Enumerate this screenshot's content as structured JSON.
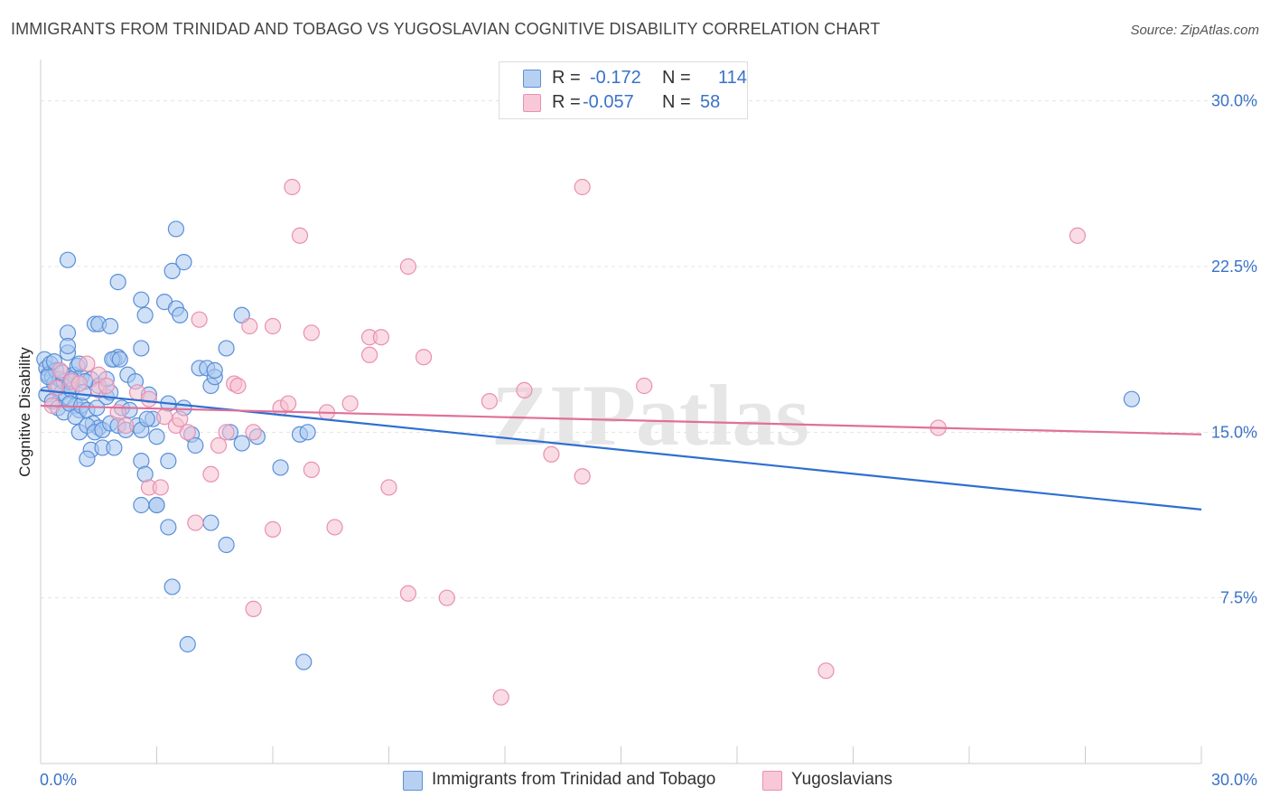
{
  "title": "IMMIGRANTS FROM TRINIDAD AND TOBAGO VS YUGOSLAVIAN COGNITIVE DISABILITY CORRELATION CHART",
  "source": "Source: ZipAtlas.com",
  "watermark": "ZIPatlas",
  "colors": {
    "blue_fill": "#a9c8f0",
    "blue_stroke": "#5a8fd8",
    "blue_line": "#2f6fd0",
    "pink_fill": "#f6bfd0",
    "pink_stroke": "#e890b0",
    "pink_line": "#e0709a",
    "axis_text": "#3a72c8",
    "grid": "#e4e4e4"
  },
  "legend_top": {
    "rows": [
      {
        "r_label": "R =",
        "r_value": "-0.172",
        "n_label": "N =",
        "n_value": "114"
      },
      {
        "r_label": "R =",
        "r_value": "-0.057",
        "n_label": "N =",
        "n_value": "58"
      }
    ]
  },
  "chart_data": {
    "type": "scatter",
    "title": "IMMIGRANTS FROM TRINIDAD AND TOBAGO VS YUGOSLAVIAN COGNITIVE DISABILITY CORRELATION CHART",
    "xlabel": "",
    "ylabel": "Cognitive Disability",
    "xlim": [
      0,
      30
    ],
    "ylim": [
      0,
      31.5
    ],
    "x_tick_labels": [
      "0.0%",
      "30.0%"
    ],
    "y_ticks": [
      7.5,
      15.0,
      22.5,
      30.0
    ],
    "y_tick_labels": [
      "7.5%",
      "15.0%",
      "22.5%",
      "30.0%"
    ],
    "grid": true,
    "legend_position": "bottom",
    "series": [
      {
        "name": "Immigrants from Trinidad and Tobago",
        "r": -0.172,
        "n": 114,
        "trend": {
          "x": [
            0,
            30
          ],
          "y": [
            16.9,
            11.5
          ]
        },
        "points": [
          [
            0.1,
            18.3
          ],
          [
            0.15,
            17.9
          ],
          [
            0.2,
            17.6
          ],
          [
            0.25,
            18.1
          ],
          [
            0.3,
            17.5
          ],
          [
            0.35,
            17.2
          ],
          [
            0.4,
            17.8
          ],
          [
            0.45,
            17.0
          ],
          [
            0.5,
            17.4
          ],
          [
            0.55,
            16.8
          ],
          [
            0.6,
            17.3
          ],
          [
            0.65,
            16.6
          ],
          [
            0.7,
            18.6
          ],
          [
            0.75,
            17.1
          ],
          [
            0.8,
            16.9
          ],
          [
            0.85,
            17.6
          ],
          [
            0.9,
            16.2
          ],
          [
            0.95,
            18.0
          ],
          [
            1.0,
            16.0
          ],
          [
            1.05,
            17.5
          ],
          [
            0.15,
            16.7
          ],
          [
            0.3,
            16.4
          ],
          [
            0.45,
            16.1
          ],
          [
            0.6,
            15.9
          ],
          [
            0.75,
            16.3
          ],
          [
            0.9,
            15.7
          ],
          [
            1.05,
            16.2
          ],
          [
            1.2,
            16.0
          ],
          [
            1.35,
            15.4
          ],
          [
            1.5,
            15.2
          ],
          [
            1.0,
            15.0
          ],
          [
            1.2,
            15.3
          ],
          [
            1.4,
            15.0
          ],
          [
            1.6,
            15.1
          ],
          [
            1.8,
            15.4
          ],
          [
            2.0,
            15.3
          ],
          [
            2.2,
            15.1
          ],
          [
            1.3,
            14.2
          ],
          [
            1.6,
            14.3
          ],
          [
            1.9,
            14.3
          ],
          [
            0.7,
            22.8
          ],
          [
            0.7,
            19.5
          ],
          [
            0.7,
            18.9
          ],
          [
            1.0,
            18.1
          ],
          [
            1.4,
            19.9
          ],
          [
            1.5,
            19.9
          ],
          [
            1.8,
            19.8
          ],
          [
            1.9,
            18.3
          ],
          [
            2.0,
            18.4
          ],
          [
            1.3,
            17.4
          ],
          [
            1.5,
            17.1
          ],
          [
            1.7,
            16.6
          ],
          [
            1.8,
            16.8
          ],
          [
            2.1,
            16.1
          ],
          [
            2.3,
            16.0
          ],
          [
            2.5,
            15.3
          ],
          [
            2.6,
            15.1
          ],
          [
            2.8,
            16.7
          ],
          [
            2.9,
            15.6
          ],
          [
            3.0,
            14.8
          ],
          [
            2.0,
            21.8
          ],
          [
            2.6,
            21.0
          ],
          [
            2.7,
            20.3
          ],
          [
            2.6,
            18.8
          ],
          [
            3.2,
            20.9
          ],
          [
            3.5,
            20.6
          ],
          [
            3.6,
            20.3
          ],
          [
            3.4,
            22.3
          ],
          [
            3.7,
            22.7
          ],
          [
            3.5,
            24.2
          ],
          [
            3.3,
            16.3
          ],
          [
            3.7,
            16.1
          ],
          [
            3.9,
            14.9
          ],
          [
            4.0,
            14.4
          ],
          [
            4.1,
            17.9
          ],
          [
            4.3,
            17.9
          ],
          [
            4.4,
            17.1
          ],
          [
            4.5,
            17.5
          ],
          [
            4.5,
            17.8
          ],
          [
            4.8,
            18.8
          ],
          [
            5.2,
            20.3
          ],
          [
            5.6,
            14.8
          ],
          [
            5.2,
            14.5
          ],
          [
            4.9,
            15.0
          ],
          [
            2.6,
            13.7
          ],
          [
            2.7,
            13.1
          ],
          [
            3.3,
            13.7
          ],
          [
            3.0,
            11.7
          ],
          [
            3.0,
            11.7
          ],
          [
            2.6,
            11.7
          ],
          [
            3.3,
            10.7
          ],
          [
            4.4,
            10.9
          ],
          [
            4.8,
            9.9
          ],
          [
            3.4,
            8.0
          ],
          [
            3.8,
            5.4
          ],
          [
            6.2,
            13.4
          ],
          [
            6.7,
            14.9
          ],
          [
            6.9,
            15.0
          ],
          [
            6.8,
            4.6
          ],
          [
            1.2,
            13.8
          ],
          [
            0.2,
            17.5
          ],
          [
            0.35,
            18.2
          ],
          [
            0.55,
            17.7
          ],
          [
            0.8,
            17.4
          ],
          [
            1.15,
            17.3
          ],
          [
            1.7,
            17.4
          ],
          [
            1.85,
            18.3
          ],
          [
            2.05,
            18.3
          ],
          [
            2.25,
            17.6
          ],
          [
            2.45,
            17.3
          ],
          [
            1.1,
            16.8
          ],
          [
            1.45,
            16.1
          ],
          [
            2.75,
            15.6
          ],
          [
            28.2,
            16.5
          ]
        ]
      },
      {
        "name": "Yugoslavians",
        "r": -0.057,
        "n": 58,
        "trend": {
          "x": [
            0,
            30
          ],
          "y": [
            16.2,
            14.9
          ]
        },
        "points": [
          [
            0.3,
            16.2
          ],
          [
            0.4,
            17.0
          ],
          [
            0.5,
            17.8
          ],
          [
            0.8,
            17.3
          ],
          [
            1.0,
            17.2
          ],
          [
            1.2,
            18.1
          ],
          [
            1.5,
            17.6
          ],
          [
            1.5,
            16.9
          ],
          [
            1.7,
            17.1
          ],
          [
            2.0,
            15.9
          ],
          [
            2.2,
            15.3
          ],
          [
            2.5,
            16.8
          ],
          [
            2.8,
            16.5
          ],
          [
            3.2,
            15.7
          ],
          [
            3.5,
            15.3
          ],
          [
            3.8,
            15.0
          ],
          [
            2.8,
            12.5
          ],
          [
            3.1,
            12.5
          ],
          [
            4.0,
            10.9
          ],
          [
            4.1,
            20.1
          ],
          [
            4.4,
            13.1
          ],
          [
            4.6,
            14.4
          ],
          [
            4.8,
            15.0
          ],
          [
            5.0,
            17.2
          ],
          [
            5.1,
            17.1
          ],
          [
            5.4,
            19.8
          ],
          [
            5.5,
            15.0
          ],
          [
            5.5,
            7.0
          ],
          [
            6.0,
            19.8
          ],
          [
            6.0,
            10.6
          ],
          [
            6.2,
            16.1
          ],
          [
            6.4,
            16.3
          ],
          [
            6.5,
            26.1
          ],
          [
            6.7,
            23.9
          ],
          [
            7.0,
            13.3
          ],
          [
            7.0,
            19.5
          ],
          [
            7.4,
            15.9
          ],
          [
            7.6,
            10.7
          ],
          [
            8.0,
            16.3
          ],
          [
            8.5,
            19.3
          ],
          [
            8.5,
            18.5
          ],
          [
            8.8,
            19.3
          ],
          [
            9.0,
            12.5
          ],
          [
            9.5,
            22.5
          ],
          [
            9.5,
            7.7
          ],
          [
            9.9,
            18.4
          ],
          [
            10.5,
            7.5
          ],
          [
            11.6,
            16.4
          ],
          [
            11.9,
            3.0
          ],
          [
            12.5,
            16.9
          ],
          [
            13.2,
            14.0
          ],
          [
            14.0,
            26.1
          ],
          [
            14.0,
            13.0
          ],
          [
            15.6,
            17.1
          ],
          [
            20.3,
            4.2
          ],
          [
            23.2,
            15.2
          ],
          [
            26.8,
            23.9
          ],
          [
            3.6,
            15.6
          ]
        ]
      }
    ]
  }
}
